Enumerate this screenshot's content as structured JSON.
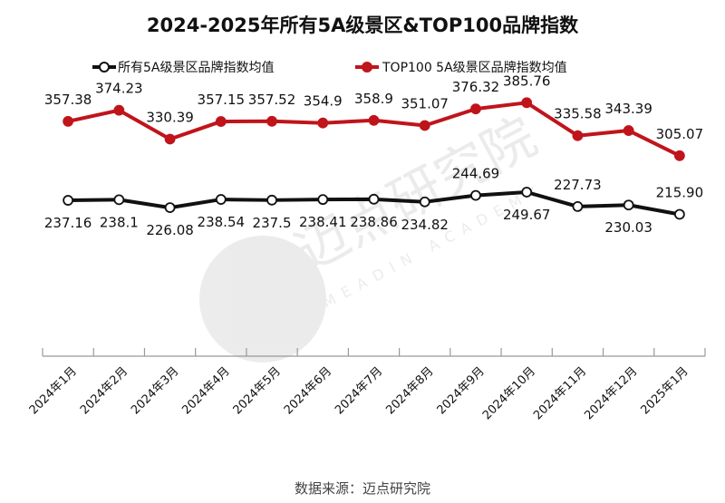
{
  "chart_data": {
    "type": "line",
    "title": "2024-2025年所有5A级景区&TOP100品牌指数",
    "categories": [
      "2024年1月",
      "2024年2月",
      "2024年3月",
      "2024年4月",
      "2024年5月",
      "2024年6月",
      "2024年7月",
      "2024年8月",
      "2024年9月",
      "2024年10月",
      "2024年11月",
      "2024年12月",
      "2025年1月"
    ],
    "series": [
      {
        "name": "所有5A级景区品牌指数均值",
        "color": "#111111",
        "marker": "hollow-circle",
        "values": [
          237.16,
          238.1,
          226.08,
          238.54,
          237.5,
          238.41,
          238.86,
          234.82,
          244.69,
          249.67,
          227.73,
          230.03,
          215.9
        ],
        "labels": [
          "237.16",
          "238.1",
          "226.08",
          "238.54",
          "237.5",
          "238.41",
          "238.86",
          "234.82",
          "244.69",
          "249.67",
          "227.73",
          "230.03",
          "215.90"
        ]
      },
      {
        "name": "TOP100 5A级景区品牌指数均值",
        "color": "#c0141b",
        "marker": "filled-circle",
        "values": [
          357.38,
          374.23,
          330.39,
          357.15,
          357.52,
          354.9,
          358.9,
          351.07,
          376.32,
          385.76,
          335.58,
          343.39,
          305.07
        ],
        "labels": [
          "357.38",
          "374.23",
          "330.39",
          "357.15",
          "357.52",
          "354.9",
          "358.9",
          "351.07",
          "376.32",
          "385.76",
          "335.58",
          "343.39",
          "305.07"
        ]
      }
    ],
    "ylim": [
      0,
      400
    ],
    "y_axis_visible": false,
    "grid": false,
    "legend": "top"
  },
  "watermark": "迈点研究院 MEADIN ACADEMY",
  "footer": "数据来源：迈点研究院"
}
